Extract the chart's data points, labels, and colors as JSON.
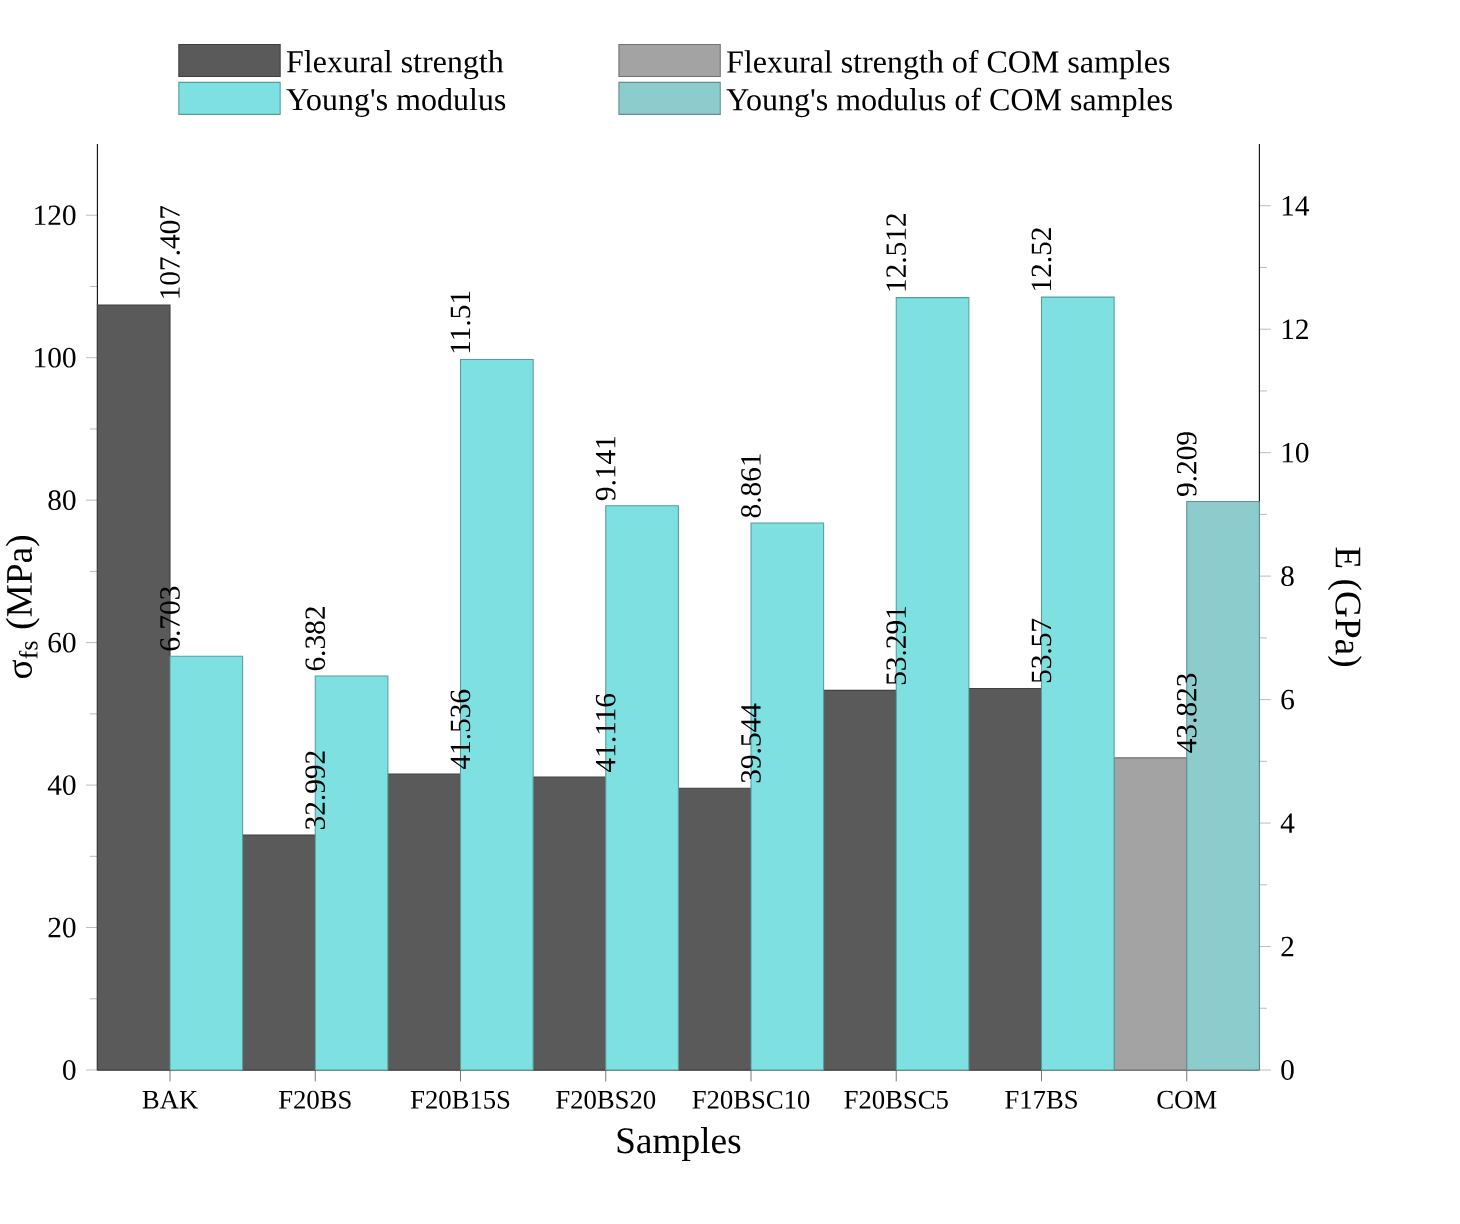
{
  "chart_data": {
    "type": "bar",
    "xlabel": "Samples",
    "ylabel": "σ$_{fs}$ (MPa)",
    "y2label": "E (GPa)",
    "categories": [
      "BAK",
      "F20BS",
      "F20B15S",
      "F20BS20",
      "F20BSC10",
      "F20BSC5",
      "F17BS",
      "COM"
    ],
    "series": [
      {
        "name": "Flexural strength",
        "color": "#5a5a5a",
        "values": [
          107.407,
          32.992,
          41.536,
          41.116,
          39.544,
          53.291,
          53.57,
          null
        ]
      },
      {
        "name": "Young's modulus",
        "color": "#7ee0e0",
        "axis": "y2",
        "values": [
          6.703,
          6.382,
          11.51,
          9.141,
          8.861,
          12.512,
          12.52,
          null
        ]
      },
      {
        "name": "Flexural strength of COM samples",
        "color": "#a3a3a3",
        "values": [
          null,
          null,
          null,
          null,
          null,
          null,
          null,
          43.823
        ]
      },
      {
        "name": "Young's modulus of COM samples",
        "color": "#8ccccc",
        "axis": "y2",
        "values": [
          null,
          null,
          null,
          null,
          null,
          null,
          null,
          9.209
        ]
      }
    ],
    "ylim": [
      0,
      130
    ],
    "yticks": [
      0,
      20,
      40,
      60,
      80,
      100,
      120
    ],
    "y2lim": [
      0,
      15
    ],
    "y2ticks": [
      0,
      2,
      4,
      6,
      8,
      10,
      12,
      14
    ],
    "data_labels": true,
    "legend": "top",
    "grid": false
  }
}
